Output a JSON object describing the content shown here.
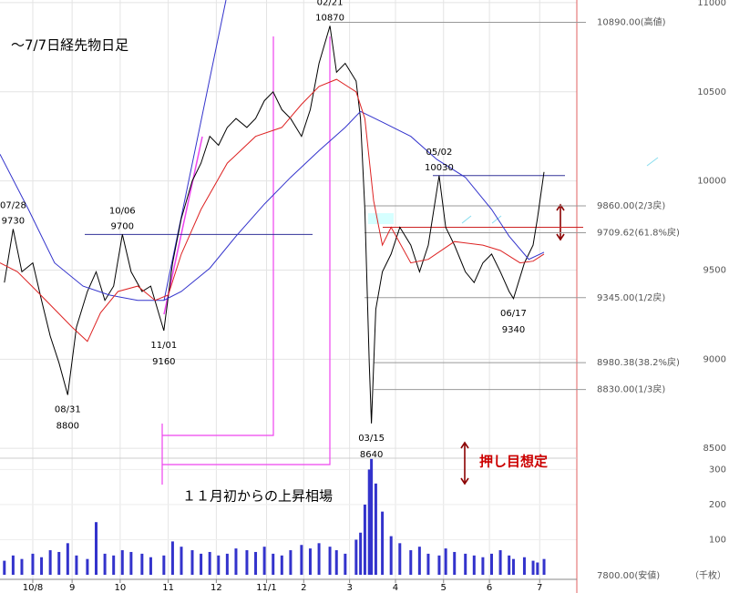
{
  "chart_data": {
    "type": "line",
    "title": "～7/7日経先物日足",
    "note": "１１月初からの上昇相場",
    "note2": "押し目想定",
    "volume_unit": "（千枚）",
    "low_label": "7800.00(安値)",
    "xlim": [
      0,
      264
    ],
    "xticks": [
      {
        "value": 15,
        "label": "10/8"
      },
      {
        "value": 33,
        "label": "9"
      },
      {
        "value": 55,
        "label": "10"
      },
      {
        "value": 77,
        "label": "11"
      },
      {
        "value": 99,
        "label": "12"
      },
      {
        "value": 122,
        "label": "11/1"
      },
      {
        "value": 139,
        "label": "2"
      },
      {
        "value": 160,
        "label": "3"
      },
      {
        "value": 181,
        "label": "4"
      },
      {
        "value": 203,
        "label": "5"
      },
      {
        "value": 224,
        "label": "6"
      },
      {
        "value": 247,
        "label": "7"
      }
    ],
    "ylim": [
      8460,
      11015
    ],
    "yticks": [
      11000,
      10500,
      10000,
      9500,
      9000,
      8500
    ],
    "y2lim": [
      0,
      327
    ],
    "y2ticks": [
      300,
      200,
      100
    ],
    "grid": true,
    "series": [
      {
        "color": "#000000",
        "x": [
          2,
          6,
          10,
          15,
          19,
          23,
          27,
          31,
          35,
          40,
          44,
          48,
          52,
          56,
          60,
          65,
          69,
          75,
          79,
          83,
          88,
          92,
          96,
          100,
          104,
          108,
          113,
          117,
          121,
          125,
          129,
          133,
          138,
          142,
          146,
          151,
          154,
          158,
          163,
          165,
          167,
          169,
          170,
          172,
          175,
          179,
          183,
          188,
          192,
          196,
          201,
          204,
          208,
          213,
          217,
          221,
          225,
          229,
          233,
          235,
          240,
          244,
          246,
          249
        ],
        "values": [
          9430,
          9730,
          9490,
          9540,
          9330,
          9130,
          8980,
          8800,
          9180,
          9380,
          9490,
          9330,
          9410,
          9700,
          9490,
          9380,
          9410,
          9160,
          9540,
          9790,
          10000,
          10100,
          10250,
          10200,
          10300,
          10350,
          10300,
          10350,
          10450,
          10500,
          10400,
          10350,
          10250,
          10400,
          10660,
          10870,
          10610,
          10660,
          10560,
          10350,
          9840,
          8980,
          8640,
          9280,
          9490,
          9590,
          9740,
          9640,
          9490,
          9640,
          10030,
          9740,
          9640,
          9490,
          9430,
          9540,
          9590,
          9490,
          9380,
          9340,
          9540,
          9640,
          9790,
          10050
        ]
      },
      {
        "color": "#3333cc",
        "x": [
          0,
          13,
          25,
          38,
          50,
          63,
          75,
          83,
          96,
          108,
          121,
          133,
          146,
          158,
          165,
          175,
          188,
          200,
          213,
          225,
          233,
          242,
          249
        ],
        "values": [
          10150,
          9840,
          9540,
          9410,
          9360,
          9330,
          9330,
          9380,
          9510,
          9690,
          9870,
          10020,
          10170,
          10300,
          10390,
          10330,
          10250,
          10120,
          10020,
          9840,
          9690,
          9560,
          9600
        ]
      },
      {
        "color": "#dd2222",
        "x": [
          0,
          8,
          17,
          25,
          33,
          40,
          46,
          54,
          63,
          71,
          77,
          83,
          92,
          104,
          117,
          129,
          138,
          146,
          154,
          163,
          167,
          171,
          175,
          179,
          188,
          196,
          208,
          221,
          229,
          238,
          244,
          249
        ],
        "values": [
          9540,
          9490,
          9380,
          9280,
          9180,
          9100,
          9260,
          9380,
          9410,
          9330,
          9360,
          9590,
          9840,
          10100,
          10250,
          10300,
          10430,
          10530,
          10570,
          10500,
          10350,
          9890,
          9640,
          9740,
          9540,
          9560,
          9660,
          9640,
          9610,
          9540,
          9550,
          9590
        ]
      },
      {
        "color": "#3333cc",
        "axis": "y2",
        "x": [
          2,
          6,
          10,
          15,
          19,
          23,
          27,
          31,
          35,
          40,
          44,
          48,
          52,
          56,
          60,
          65,
          69,
          75,
          79,
          83,
          88,
          92,
          96,
          100,
          104,
          108,
          113,
          117,
          121,
          125,
          129,
          133,
          138,
          142,
          146,
          151,
          154,
          158,
          163,
          165,
          167,
          169,
          170,
          172,
          175,
          179,
          183,
          188,
          192,
          196,
          201,
          204,
          208,
          213,
          217,
          221,
          225,
          229,
          233,
          235,
          240,
          244,
          246,
          249
        ],
        "values": [
          40,
          55,
          45,
          60,
          50,
          70,
          65,
          90,
          55,
          45,
          150,
          60,
          55,
          70,
          65,
          60,
          50,
          55,
          95,
          80,
          70,
          60,
          65,
          55,
          60,
          75,
          70,
          65,
          80,
          60,
          55,
          70,
          85,
          75,
          90,
          80,
          70,
          60,
          100,
          120,
          200,
          300,
          330,
          260,
          180,
          110,
          90,
          70,
          80,
          60,
          55,
          75,
          65,
          60,
          55,
          50,
          60,
          70,
          55,
          45,
          50,
          40,
          35,
          45
        ]
      }
    ],
    "levels": [
      {
        "value": 10890,
        "label": "10890.00(高値)"
      },
      {
        "value": 9860,
        "label": "9860.00(2/3戻)"
      },
      {
        "value": 9709.62,
        "label": "9709.62(61.8%戻)"
      },
      {
        "value": 9345,
        "label": "9345.00(1/2戻)"
      },
      {
        "value": 8980.38,
        "label": "8980.38(38.2%戻)"
      },
      {
        "value": 8830,
        "label": "8830.00(1/3戻)"
      }
    ],
    "hlines": [
      {
        "value": 9700,
        "color": "#333399"
      },
      {
        "value": 10030,
        "color": "#333399"
      },
      {
        "value": 9740,
        "color": "#cc2222"
      }
    ],
    "annotations": [
      {
        "date": "07/28",
        "value": 9730,
        "x": 6,
        "side": "above"
      },
      {
        "date": "08/31",
        "value": 8800,
        "x": 31,
        "side": "below"
      },
      {
        "date": "10/06",
        "value": 9700,
        "x": 56,
        "side": "above"
      },
      {
        "date": "11/01",
        "value": 9160,
        "x": 75,
        "side": "below"
      },
      {
        "date": "02/21",
        "value": 10870,
        "x": 151,
        "side": "above"
      },
      {
        "date": "03/15",
        "value": 8640,
        "x": 170,
        "side": "below"
      },
      {
        "date": "05/02",
        "value": 10030,
        "x": 201,
        "side": "above"
      },
      {
        "date": "06/17",
        "value": 9340,
        "x": 235,
        "side": "below"
      }
    ]
  }
}
